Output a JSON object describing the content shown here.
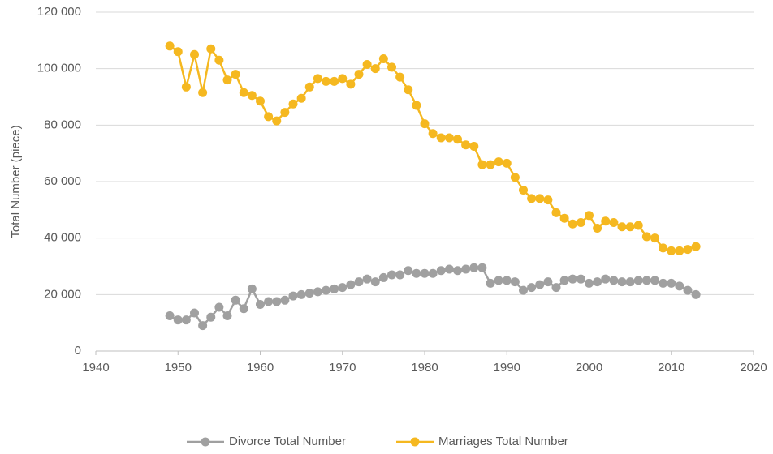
{
  "chart_data": {
    "type": "line",
    "y_label": "Total Number (piece)",
    "x": [
      1949,
      1950,
      1951,
      1952,
      1953,
      1954,
      1955,
      1956,
      1957,
      1958,
      1959,
      1960,
      1961,
      1962,
      1963,
      1964,
      1965,
      1966,
      1967,
      1968,
      1969,
      1970,
      1971,
      1972,
      1973,
      1974,
      1975,
      1976,
      1977,
      1978,
      1979,
      1980,
      1981,
      1982,
      1983,
      1984,
      1985,
      1986,
      1987,
      1988,
      1989,
      1990,
      1991,
      1992,
      1993,
      1994,
      1995,
      1996,
      1997,
      1998,
      1999,
      2000,
      2001,
      2002,
      2003,
      2004,
      2005,
      2006,
      2007,
      2008,
      2009,
      2010,
      2011,
      2012,
      2013
    ],
    "series": [
      {
        "name": "Divorce Total Number",
        "color": "#a0a0a0",
        "values": [
          12500,
          11000,
          11000,
          13500,
          9000,
          12000,
          15500,
          12500,
          18000,
          15000,
          22000,
          16500,
          17500,
          17500,
          18000,
          19500,
          20000,
          20500,
          21000,
          21500,
          22000,
          22500,
          23500,
          24500,
          25500,
          24500,
          26000,
          27000,
          27000,
          28500,
          27500,
          27500,
          27500,
          28500,
          29000,
          28500,
          29000,
          29500,
          29500,
          24000,
          25000,
          25000,
          24500,
          21500,
          22500,
          23500,
          24500,
          22500,
          25000,
          25500,
          25500,
          24000,
          24500,
          25500,
          25000,
          24500,
          24500,
          25000,
          25000,
          25000,
          24000,
          24000,
          23000,
          21500,
          20000
        ]
      },
      {
        "name": "Marriages Total Number",
        "color": "#f5b820",
        "values": [
          108000,
          106000,
          93500,
          105000,
          91500,
          107000,
          103000,
          96000,
          98000,
          91500,
          90500,
          88500,
          83000,
          81500,
          84500,
          87500,
          89500,
          93500,
          96500,
          95500,
          95500,
          96500,
          94500,
          98000,
          101500,
          100000,
          103500,
          100500,
          97000,
          92500,
          87000,
          80500,
          77000,
          75500,
          75500,
          75000,
          73000,
          72500,
          66000,
          66000,
          67000,
          66500,
          61500,
          57000,
          54000,
          54000,
          53500,
          49000,
          47000,
          45000,
          45500,
          48000,
          43500,
          46000,
          45500,
          44000,
          44000,
          44500,
          40500,
          40000,
          36500,
          35500,
          35500,
          36000,
          37000
        ]
      }
    ],
    "xlim": [
      1940,
      2020
    ],
    "xticks": [
      1940,
      1950,
      1960,
      1970,
      1980,
      1990,
      2000,
      2010,
      2020
    ],
    "ylim": [
      0,
      120000
    ],
    "yticks": [
      0,
      {
        "value": 20000,
        "label": "20 000"
      },
      {
        "value": 40000,
        "label": "40 000"
      },
      {
        "value": 60000,
        "label": "60 000"
      },
      {
        "value": 80000,
        "label": "80 000"
      },
      {
        "value": 100000,
        "label": "100 000"
      },
      {
        "value": 120000,
        "label": "120 000"
      }
    ],
    "grid": true,
    "legend": "bottom"
  }
}
